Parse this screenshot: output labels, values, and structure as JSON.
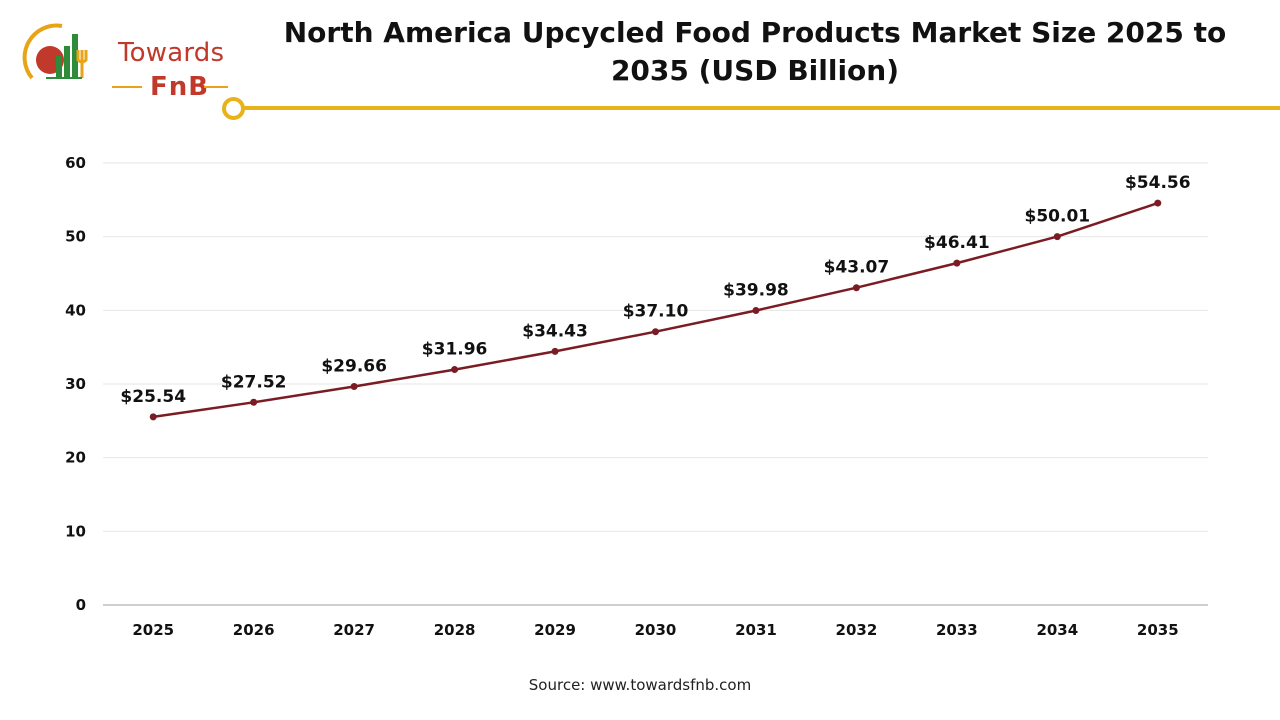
{
  "title": "North America Upcycled Food Products Market Size 2025 to 2035 (USD Billion)",
  "brand": {
    "line1": "Towards",
    "line2": "FnB"
  },
  "source": "Source: www.towardsfnb.com",
  "colors": {
    "line": "#7b1c24",
    "accent": "#e8b21a",
    "brand": "#c0392b",
    "grid": "#e6e6e6"
  },
  "chart_data": {
    "type": "line",
    "title": "North America Upcycled Food Products Market Size 2025 to 2035 (USD Billion)",
    "xlabel": "",
    "ylabel": "",
    "categories": [
      "2025",
      "2026",
      "2027",
      "2028",
      "2029",
      "2030",
      "2031",
      "2032",
      "2033",
      "2034",
      "2035"
    ],
    "values": [
      25.54,
      27.52,
      29.66,
      31.96,
      34.43,
      37.1,
      39.98,
      43.07,
      46.41,
      50.01,
      54.56
    ],
    "data_labels": [
      "$25.54",
      "$27.52",
      "$29.66",
      "$31.96",
      "$34.43",
      "$37.10",
      "$39.98",
      "$43.07",
      "$46.41",
      "$50.01",
      "$54.56"
    ],
    "yticks": [
      "0",
      "10",
      "20",
      "30",
      "40",
      "50",
      "60"
    ],
    "ylim": [
      0,
      60
    ],
    "grid": true,
    "legend": "none"
  }
}
